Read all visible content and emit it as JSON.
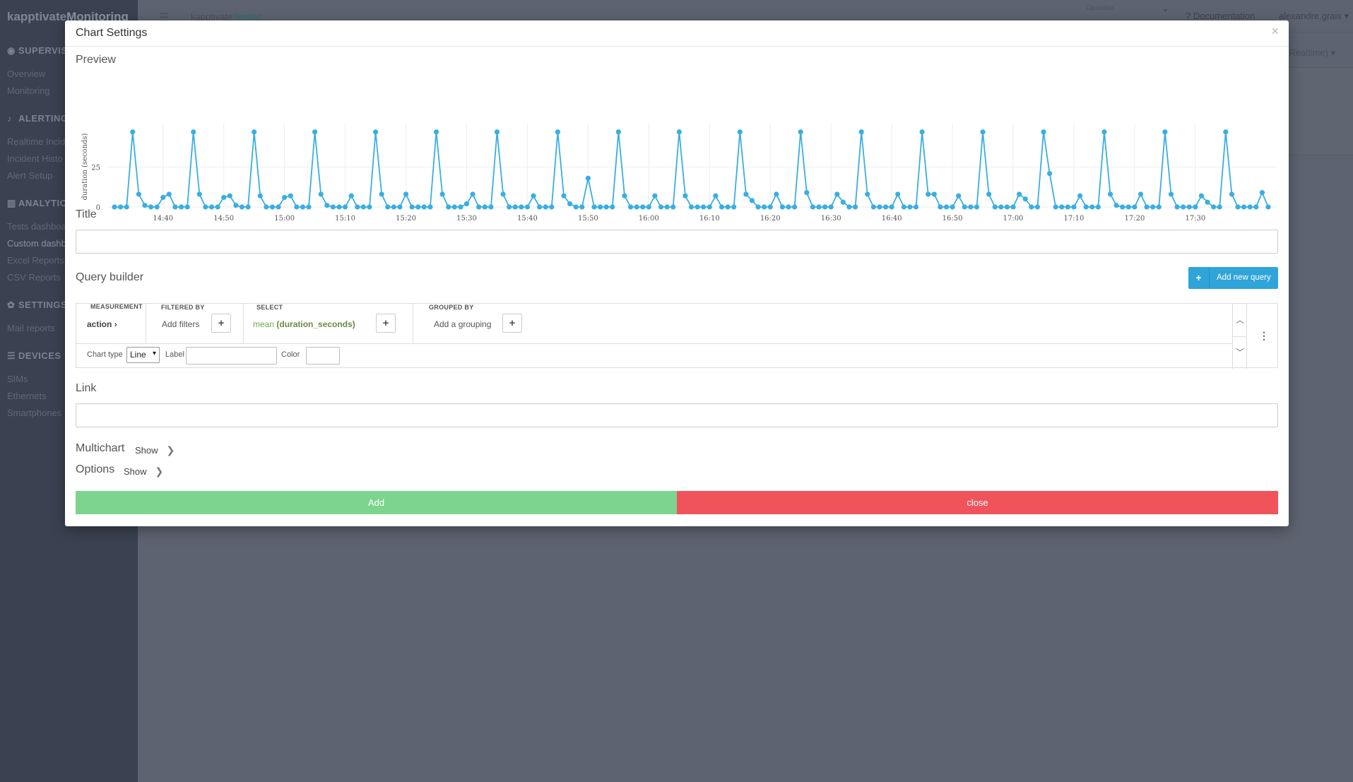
{
  "app": {
    "brand_part1": "kapptivate",
    "brand_part2": "Monitoring",
    "breadcrumb_part1": "kapptivate",
    "breadcrumb_part2": "Testing",
    "operator_label": "Operator",
    "documentation": "Documentation",
    "user": "alexandre.grais",
    "realtime": "(Realtime)"
  },
  "sidebar": {
    "sections": [
      {
        "label": "SUPERVIS",
        "icon": "eye-icon",
        "items": [
          "Overview",
          "Monitoring"
        ]
      },
      {
        "label": "ALERTING",
        "icon": "bell-icon",
        "items": [
          "Realtime Incid",
          "Incident Histo",
          "Alert Setup"
        ]
      },
      {
        "label": "ANALYTIC",
        "icon": "bar-chart-icon",
        "items": [
          "Tests dashboa",
          "Custom dashb",
          "Excel Reports",
          "CSV Reports"
        ]
      },
      {
        "label": "SETTINGS",
        "icon": "gear-icon",
        "items": [
          "Mail reports"
        ]
      },
      {
        "label": "DEVICES",
        "icon": "list-icon",
        "items": [
          "SIMs",
          "Ethernets",
          "Smartphones"
        ]
      }
    ]
  },
  "modal": {
    "title": "Chart Settings",
    "close_glyph": "×",
    "preview_label": "Preview",
    "title_label": "Title",
    "title_value": "",
    "query_builder_label": "Query builder",
    "add_query_label": "Add new query",
    "link_label": "Link",
    "link_value": "",
    "multichart_label": "Multichart",
    "options_label": "Options",
    "show_label": "Show",
    "add_button": "Add",
    "close_button": "close"
  },
  "query": {
    "measurement_head": "MEASUREMENT",
    "measurement_value": "action",
    "filtered_head": "FILTERED BY",
    "filtered_value": "Add filters",
    "select_head": "SELECT",
    "select_fn": "mean",
    "select_field": "(duration_seconds)",
    "grouped_head": "GROUPED BY",
    "grouped_value": "Add a grouping",
    "chart_type_label": "Chart type",
    "chart_type_value": "Line",
    "label_label": "Label",
    "label_value": "",
    "color_label": "Color",
    "color_value": ""
  },
  "colors": {
    "series": "#3aaee0",
    "add_button": "#7dd48f",
    "close_button": "#f0545a",
    "add_query": "#2fa4d8"
  },
  "chart_data": {
    "type": "line",
    "ylabel": "duration (seconds)",
    "ylim": [
      0,
      50
    ],
    "y_ticks": [
      0,
      25
    ],
    "x_tick_labels": [
      "14:40",
      "14:50",
      "15:00",
      "15:10",
      "15:20",
      "15:30",
      "15:40",
      "15:50",
      "16:00",
      "16:10",
      "16:20",
      "16:30",
      "16:40",
      "16:50",
      "17:00",
      "17:10",
      "17:20",
      "17:30"
    ],
    "x_start": "14:32",
    "x_step_minutes": 1,
    "series": [
      {
        "values": [
          0,
          0,
          0,
          47,
          8,
          1,
          0,
          0,
          6,
          8,
          0,
          0,
          0,
          47,
          8,
          0,
          0,
          0,
          6,
          7,
          1,
          0,
          0,
          47,
          7,
          0,
          0,
          0,
          6,
          7,
          0,
          0,
          0,
          47,
          8,
          1,
          0,
          0,
          0,
          7,
          0,
          0,
          0,
          47,
          8,
          0,
          0,
          0,
          8,
          0,
          0,
          0,
          0,
          47,
          8,
          0,
          0,
          0,
          2,
          8,
          0,
          0,
          0,
          47,
          8,
          0,
          0,
          0,
          0,
          7,
          0,
          0,
          0,
          47,
          7,
          2,
          0,
          0,
          18,
          0,
          0,
          0,
          0,
          47,
          7,
          0,
          0,
          0,
          0,
          7,
          0,
          0,
          0,
          47,
          7,
          0,
          0,
          0,
          0,
          7,
          0,
          0,
          0,
          47,
          8,
          4,
          0,
          0,
          0,
          8,
          0,
          0,
          0,
          47,
          9,
          0,
          0,
          0,
          0,
          8,
          3,
          0,
          0,
          47,
          8,
          0,
          0,
          0,
          0,
          8,
          0,
          0,
          0,
          47,
          8,
          8,
          0,
          0,
          0,
          7,
          0,
          0,
          0,
          47,
          8,
          0,
          0,
          0,
          0,
          8,
          5,
          0,
          0,
          47,
          21,
          0,
          0,
          0,
          0,
          7,
          0,
          0,
          0,
          47,
          8,
          1,
          0,
          0,
          0,
          8,
          0,
          0,
          0,
          47,
          8,
          0,
          0,
          0,
          0,
          7,
          3,
          0,
          0,
          47,
          8,
          0,
          0,
          0,
          0,
          9,
          0
        ]
      }
    ]
  }
}
